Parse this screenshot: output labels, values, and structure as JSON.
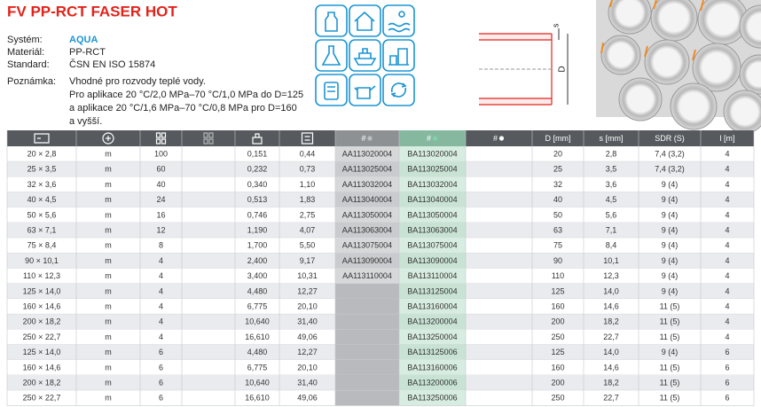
{
  "header": {
    "title": "FV PP-RCT FASER HOT"
  },
  "info": [
    {
      "label": "Systém:",
      "value": "AQUA"
    },
    {
      "label": "Materiál:",
      "value": "PP-RCT"
    },
    {
      "label": "Standard:",
      "value": "ČSN EN ISO 15874"
    }
  ],
  "note": {
    "label": "Poznámka:",
    "lines": [
      "Vhodné pro rozvody teplé vody.",
      "Pro aplikace 20 °C/2,0 MPa–70 °C/1,0 MPa do D=125",
      "a aplikace 20 °C/1,6 MPa–70 °C/0,8 MPa pro D=160",
      "a vyšší."
    ]
  },
  "diagram": {
    "s": "s",
    "d": "D"
  },
  "table": {
    "columns": [
      null,
      null,
      null,
      null,
      null,
      null,
      "#",
      "#",
      "#",
      "D [mm]",
      "s [mm]",
      "SDR (S)",
      "l [m]"
    ],
    "rows": [
      [
        "20 × 2,8",
        "m",
        "100",
        null,
        "0,151",
        "0,44",
        "AA113020004",
        "BA113020004",
        null,
        "20",
        "2,8",
        "7,4 (3,2)",
        "4"
      ],
      [
        "25 × 3,5",
        "m",
        "60",
        null,
        "0,232",
        "0,73",
        "AA113025004",
        "BA113025004",
        null,
        "25",
        "3,5",
        "7,4 (3,2)",
        "4"
      ],
      [
        "32 × 3,6",
        "m",
        "40",
        null,
        "0,340",
        "1,10",
        "AA113032004",
        "BA113032004",
        null,
        "32",
        "3,6",
        "9 (4)",
        "4"
      ],
      [
        "40 × 4,5",
        "m",
        "24",
        null,
        "0,513",
        "1,83",
        "AA113040004",
        "BA113040004",
        null,
        "40",
        "4,5",
        "9 (4)",
        "4"
      ],
      [
        "50 × 5,6",
        "m",
        "16",
        null,
        "0,746",
        "2,75",
        "AA113050004",
        "BA113050004",
        null,
        "50",
        "5,6",
        "9 (4)",
        "4"
      ],
      [
        "63 × 7,1",
        "m",
        "12",
        null,
        "1,190",
        "4,07",
        "AA113063004",
        "BA113063004",
        null,
        "63",
        "7,1",
        "9 (4)",
        "4"
      ],
      [
        "75 × 8,4",
        "m",
        "8",
        null,
        "1,700",
        "5,50",
        "AA113075004",
        "BA113075004",
        null,
        "75",
        "8,4",
        "9 (4)",
        "4"
      ],
      [
        "90 × 10,1",
        "m",
        "4",
        null,
        "2,400",
        "9,17",
        "AA113090004",
        "BA113090004",
        null,
        "90",
        "10,1",
        "9 (4)",
        "4"
      ],
      [
        "110 × 12,3",
        "m",
        "4",
        null,
        "3,400",
        "10,31",
        "AA113110004",
        "BA113110004",
        null,
        "110",
        "12,3",
        "9 (4)",
        "4"
      ],
      [
        "125 × 14,0",
        "m",
        "4",
        null,
        "4,480",
        "12,27",
        null,
        "BA113125004",
        null,
        "125",
        "14,0",
        "9 (4)",
        "4"
      ],
      [
        "160 × 14,6",
        "m",
        "4",
        null,
        "6,775",
        "20,10",
        null,
        "BA113160004",
        null,
        "160",
        "14,6",
        "11 (5)",
        "4"
      ],
      [
        "200 × 18,2",
        "m",
        "4",
        null,
        "10,640",
        "31,40",
        null,
        "BA113200004",
        null,
        "200",
        "18,2",
        "11 (5)",
        "4"
      ],
      [
        "250 × 22,7",
        "m",
        "4",
        null,
        "16,610",
        "49,06",
        null,
        "BA113250004",
        null,
        "250",
        "22,7",
        "11 (5)",
        "4"
      ],
      [
        "125 × 14,0",
        "m",
        "6",
        null,
        "4,480",
        "12,27",
        null,
        "BA113125006",
        null,
        "125",
        "14,0",
        "9 (4)",
        "6"
      ],
      [
        "160 × 14,6",
        "m",
        "6",
        null,
        "6,775",
        "20,10",
        null,
        "BA113160006",
        null,
        "160",
        "14,6",
        "11 (5)",
        "6"
      ],
      [
        "200 × 18,2",
        "m",
        "6",
        null,
        "10,640",
        "31,40",
        null,
        "BA113200006",
        null,
        "200",
        "18,2",
        "11 (5)",
        "6"
      ],
      [
        "250 × 22,7",
        "m",
        "6",
        null,
        "16,610",
        "49,06",
        null,
        "BA113250006",
        null,
        "250",
        "22,7",
        "11 (5)",
        "6"
      ]
    ]
  }
}
